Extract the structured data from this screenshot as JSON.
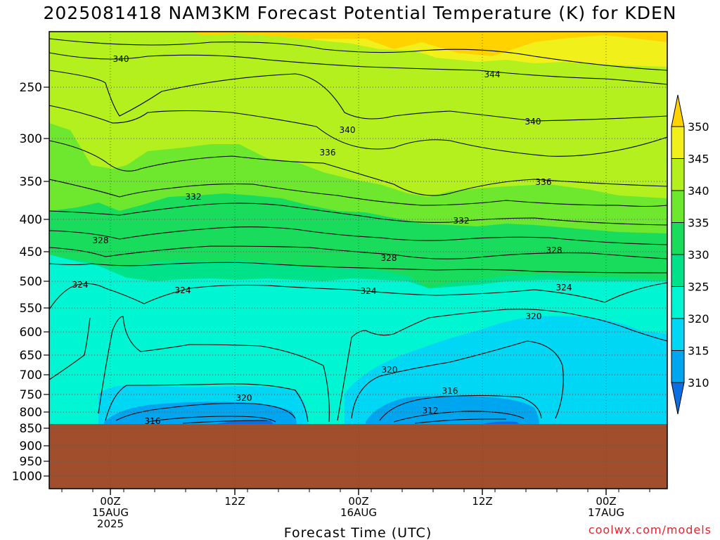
{
  "title": "2025081418 NAM3KM Forecast Potential Temperature (K) for KDEN",
  "credit": "coolwx.com/models",
  "chart_data": {
    "type": "contour-timeheight",
    "title": "2025081418 NAM3KM Forecast Potential Temperature (K) for KDEN",
    "xlabel": "Forecast Time (UTC)",
    "ylabel": "",
    "x_ticks": [
      {
        "lines": [
          "00Z",
          "15AUG",
          "2025"
        ]
      },
      {
        "lines": [
          "12Z"
        ]
      },
      {
        "lines": [
          "00Z",
          "16AUG"
        ]
      },
      {
        "lines": [
          "12Z"
        ]
      },
      {
        "lines": [
          "00Z",
          "17AUG"
        ]
      }
    ],
    "y_ticks": [
      "250",
      "300",
      "350",
      "400",
      "450",
      "500",
      "550",
      "600",
      "650",
      "700",
      "750",
      "800",
      "850",
      "900",
      "950",
      "1000"
    ],
    "colorbar": {
      "levels": [
        "310",
        "315",
        "320",
        "325",
        "330",
        "335",
        "340",
        "345",
        "350"
      ],
      "colors": [
        "#0a6fe0",
        "#00a5f0",
        "#00d7f5",
        "#00f5d2",
        "#00e28a",
        "#19dc5c",
        "#6ee82e",
        "#b4f01e",
        "#f2f01a",
        "#ffd200"
      ]
    },
    "contour_labels": [
      "340",
      "344",
      "340",
      "340",
      "336",
      "336",
      "332",
      "332",
      "328",
      "328",
      "328",
      "324",
      "324",
      "324",
      "324",
      "320",
      "320",
      "320",
      "316",
      "312",
      "316"
    ],
    "terrain_color": "#a04e2c",
    "grid": true
  }
}
